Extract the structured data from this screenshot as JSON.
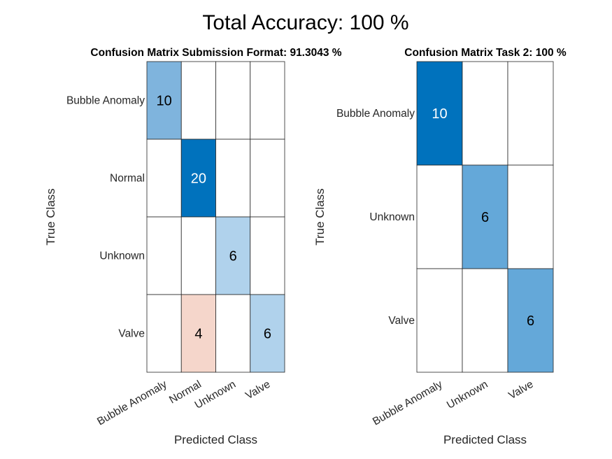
{
  "figure": {
    "title": "Total Accuracy: 100 %"
  },
  "chart_data": [
    {
      "type": "heatmap",
      "title": "Confusion Matrix Submission Format: 91.3043 %",
      "xlabel": "Predicted Class",
      "ylabel": "True Class",
      "row_labels": [
        "Bubble Anomaly",
        "Normal",
        "Unknown",
        "Valve"
      ],
      "col_labels": [
        "Bubble Anomaly",
        "Normal",
        "Unknown",
        "Valve"
      ],
      "values": [
        [
          10,
          0,
          0,
          0
        ],
        [
          0,
          20,
          0,
          0
        ],
        [
          0,
          0,
          6,
          0
        ],
        [
          0,
          4,
          0,
          6
        ]
      ],
      "cell_colors": [
        [
          "#7fb4dd",
          "#ffffff",
          "#ffffff",
          "#ffffff"
        ],
        [
          "#ffffff",
          "#0072bd",
          "#ffffff",
          "#ffffff"
        ],
        [
          "#ffffff",
          "#ffffff",
          "#b0d2ec",
          "#ffffff"
        ],
        [
          "#ffffff",
          "#f5d6cb",
          "#ffffff",
          "#b0d2ec"
        ]
      ],
      "text_colors": [
        [
          "#000000",
          "#000000",
          "#000000",
          "#000000"
        ],
        [
          "#000000",
          "#ffffff",
          "#000000",
          "#000000"
        ],
        [
          "#000000",
          "#000000",
          "#000000",
          "#000000"
        ],
        [
          "#000000",
          "#000000",
          "#000000",
          "#000000"
        ]
      ]
    },
    {
      "type": "heatmap",
      "title": "Confusion Matrix Task 2: 100 %",
      "xlabel": "Predicted Class",
      "ylabel": "True Class",
      "row_labels": [
        "Bubble Anomaly",
        "Unknown",
        "Valve"
      ],
      "col_labels": [
        "Bubble Anomaly",
        "Unknown",
        "Valve"
      ],
      "values": [
        [
          10,
          0,
          0
        ],
        [
          0,
          6,
          0
        ],
        [
          0,
          0,
          6
        ]
      ],
      "cell_colors": [
        [
          "#0072bd",
          "#ffffff",
          "#ffffff"
        ],
        [
          "#ffffff",
          "#64a8d9",
          "#ffffff"
        ],
        [
          "#ffffff",
          "#ffffff",
          "#64a8d9"
        ]
      ],
      "text_colors": [
        [
          "#ffffff",
          "#000000",
          "#000000"
        ],
        [
          "#000000",
          "#000000",
          "#000000"
        ],
        [
          "#000000",
          "#000000",
          "#000000"
        ]
      ]
    }
  ]
}
